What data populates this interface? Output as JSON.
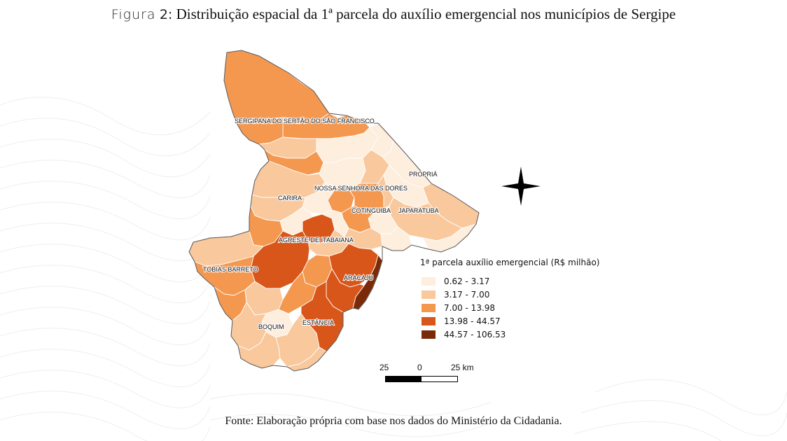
{
  "figure": {
    "prefix": "Figura",
    "number": "2:",
    "title": "Distribuição espacial da 1ª parcela do auxílio emergencial nos municípios de Sergipe"
  },
  "map": {
    "labels": {
      "sertao": "SERGIPANA DO SERTÃO DO SÃO FRANCISCO",
      "propria": "PROPRIÁ",
      "carira": "CARIRA",
      "nossa_senhora": "NOSSA SENHORA DAS DORES",
      "cotinguiba": "COTINGUIBA",
      "japaratuba": "JAPARATUBA",
      "agreste": "AGRESTE DE ITABAIANA",
      "tobias": "TOBIAS BARRETO",
      "aracaju": "ARACAJU",
      "boquim": "BOQUIM",
      "estancia": "ESTÂNCIA"
    },
    "colors": {
      "c1": "#fdeede",
      "c2": "#f9c89c",
      "c3": "#f4974f",
      "c4": "#d9561a",
      "c5": "#7a2a08",
      "border": "#ffffff",
      "outline": "#555555"
    }
  },
  "legend": {
    "title": "1ª parcela auxílio emergencial (R$ milhão)",
    "classes": [
      {
        "label": "0.62 - 3.17",
        "color": "#fdeede"
      },
      {
        "label": "3.17 - 7.00",
        "color": "#f9c89c"
      },
      {
        "label": "7.00 - 13.98",
        "color": "#f4974f"
      },
      {
        "label": "13.98 - 44.57",
        "color": "#d9561a"
      },
      {
        "label": "44.57 - 106.53",
        "color": "#7a2a08"
      }
    ]
  },
  "scale": {
    "left": "25",
    "mid": "0",
    "right": "25 km"
  },
  "source": "Fonte: Elaboração própria com base nos dados do Ministério da Cidadania."
}
